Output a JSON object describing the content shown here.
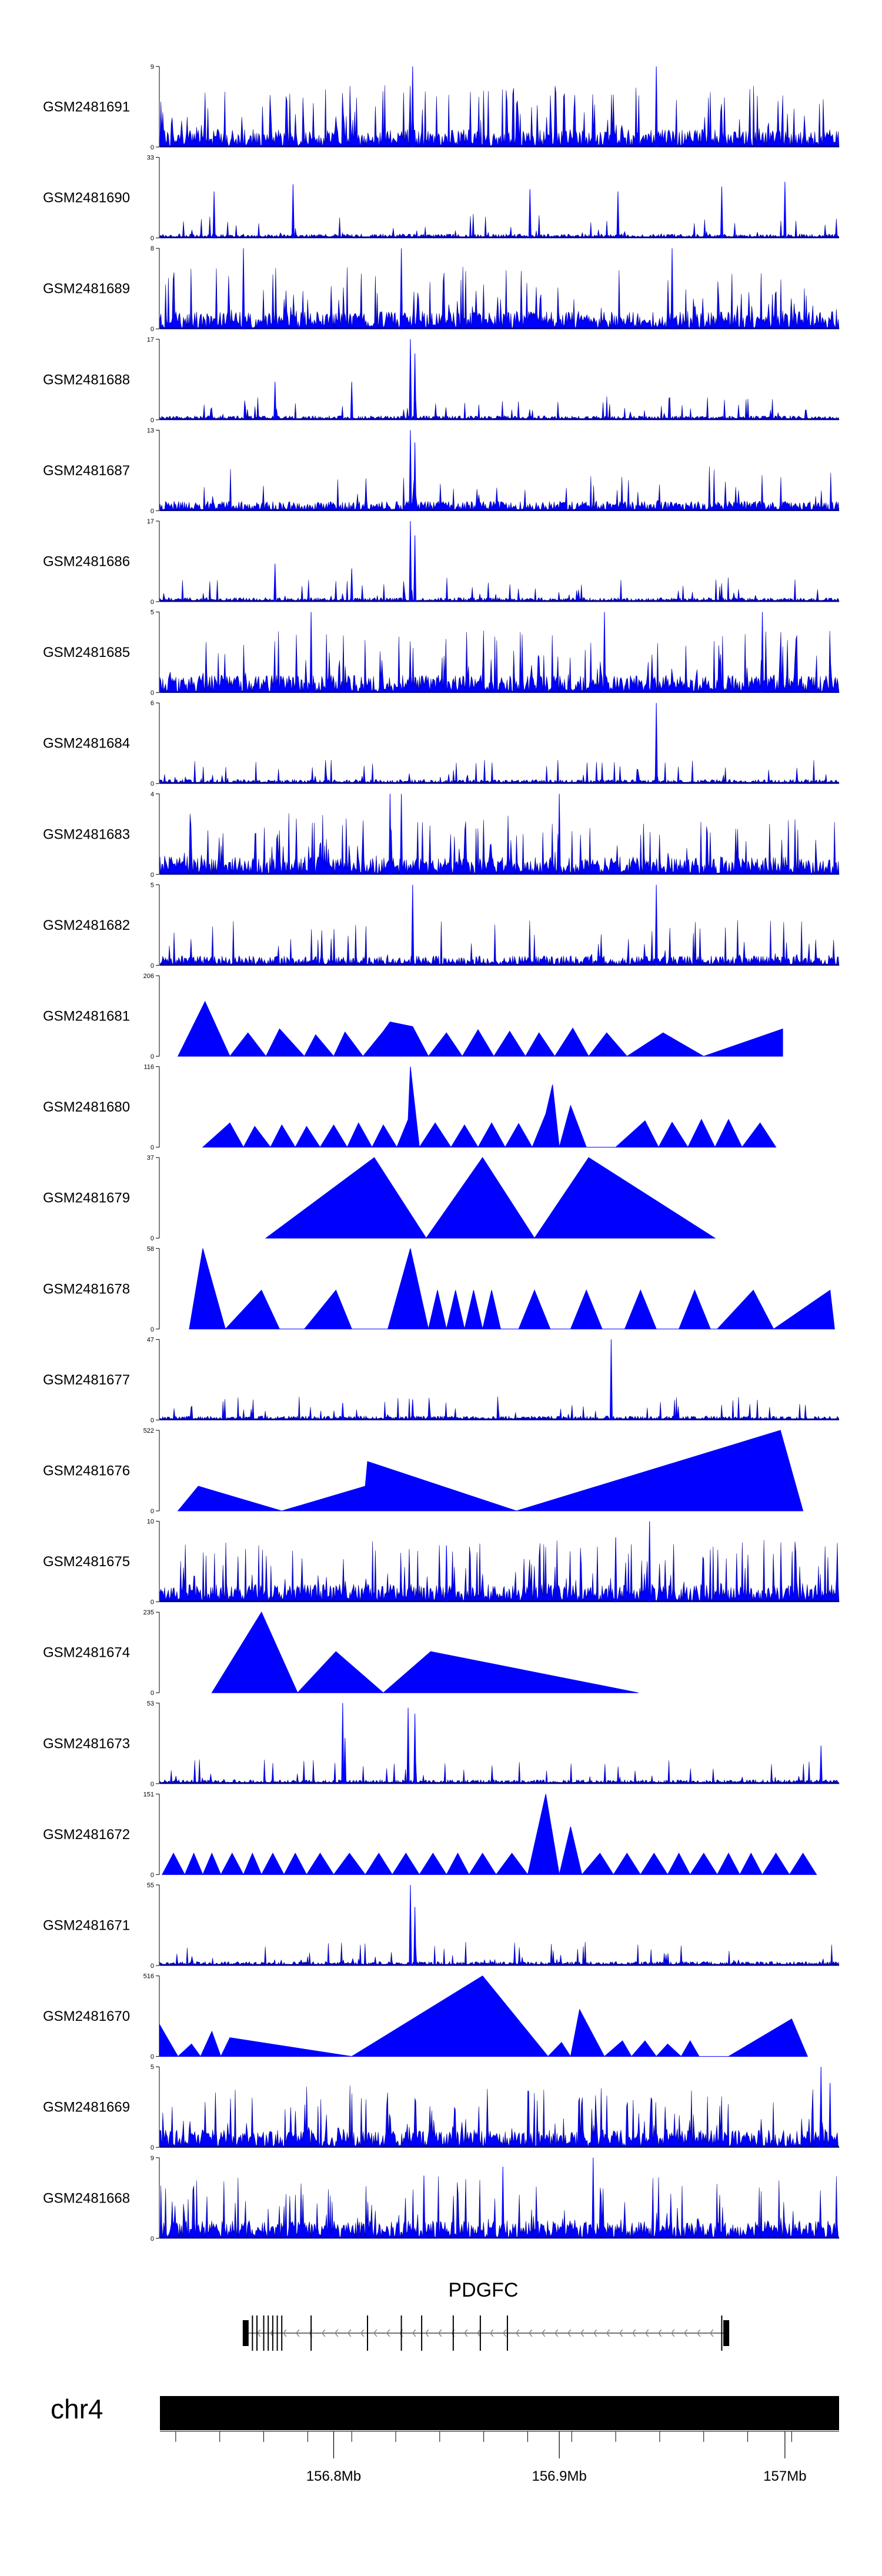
{
  "chart_data": {
    "type": "area",
    "title": "",
    "chromosome": "chr4",
    "gene": "PDGFC",
    "region_mb": [
      156.723,
      157.024
    ],
    "x_ticks": [
      156.8,
      156.9,
      157.0
    ],
    "x_tick_labels": [
      "156.8Mb",
      "156.9Mb",
      "157Mb"
    ],
    "color": "#0000FF",
    "tracks": [
      {
        "name": "GSM2481691",
        "ymax": 9,
        "ymin": 0,
        "style": "dense",
        "peaks": [
          [
            156.835,
            9
          ],
          [
            156.943,
            9
          ]
        ]
      },
      {
        "name": "GSM2481690",
        "ymax": 33,
        "ymin": 0,
        "style": "sparse",
        "peaks": [
          [
            156.747,
            19
          ],
          [
            156.782,
            22
          ],
          [
            156.887,
            20
          ],
          [
            156.926,
            19
          ],
          [
            156.972,
            21
          ],
          [
            157.0,
            23
          ]
        ]
      },
      {
        "name": "GSM2481689",
        "ymax": 8,
        "ymin": 0,
        "style": "dense",
        "peaks": [
          [
            156.76,
            8
          ],
          [
            156.83,
            8
          ],
          [
            156.95,
            8
          ]
        ]
      },
      {
        "name": "GSM2481688",
        "ymax": 17,
        "ymin": 0,
        "style": "low",
        "peaks": [
          [
            156.774,
            8
          ],
          [
            156.808,
            8
          ],
          [
            156.834,
            17
          ],
          [
            156.836,
            14
          ]
        ]
      },
      {
        "name": "GSM2481687",
        "ymax": 13,
        "ymin": 0,
        "style": "mid",
        "peaks": [
          [
            156.834,
            13
          ],
          [
            156.836,
            11
          ]
        ]
      },
      {
        "name": "GSM2481686",
        "ymax": 17,
        "ymin": 0,
        "style": "low",
        "peaks": [
          [
            156.774,
            8
          ],
          [
            156.808,
            7
          ],
          [
            156.834,
            17
          ],
          [
            156.836,
            14
          ]
        ]
      },
      {
        "name": "GSM2481685",
        "ymax": 5,
        "ymin": 0,
        "style": "dense",
        "peaks": [
          [
            156.79,
            5
          ],
          [
            156.92,
            5
          ],
          [
            156.99,
            5
          ]
        ]
      },
      {
        "name": "GSM2481684",
        "ymax": 6,
        "ymin": 0,
        "style": "low",
        "peaks": [
          [
            156.943,
            6
          ]
        ]
      },
      {
        "name": "GSM2481683",
        "ymax": 4,
        "ymin": 0,
        "style": "dense",
        "peaks": [
          [
            156.825,
            4
          ],
          [
            156.83,
            4
          ],
          [
            156.9,
            4
          ]
        ]
      },
      {
        "name": "GSM2481682",
        "ymax": 5,
        "ymin": 0,
        "style": "mid",
        "peaks": [
          [
            156.835,
            5
          ],
          [
            156.943,
            5
          ]
        ]
      },
      {
        "name": "GSM2481681",
        "ymax": 206,
        "ymin": 0,
        "style": "triangles",
        "peaks": [
          [
            156.731,
            0
          ],
          [
            156.743,
            140
          ],
          [
            156.754,
            0
          ],
          [
            156.762,
            60
          ],
          [
            156.77,
            0
          ],
          [
            156.776,
            70
          ],
          [
            156.787,
            0
          ],
          [
            156.792,
            55
          ],
          [
            156.8,
            0
          ],
          [
            156.805,
            62
          ],
          [
            156.813,
            0
          ],
          [
            156.822,
            64
          ],
          [
            156.825,
            88
          ],
          [
            156.835,
            76
          ],
          [
            156.842,
            0
          ],
          [
            156.85,
            60
          ],
          [
            156.857,
            0
          ],
          [
            156.864,
            68
          ],
          [
            156.871,
            0
          ],
          [
            156.878,
            64
          ],
          [
            156.885,
            0
          ],
          [
            156.891,
            60
          ],
          [
            156.898,
            0
          ],
          [
            156.906,
            72
          ],
          [
            156.913,
            0
          ],
          [
            156.921,
            60
          ],
          [
            156.93,
            0
          ],
          [
            156.946,
            60
          ],
          [
            156.964,
            0
          ],
          [
            156.999,
            70
          ]
        ]
      },
      {
        "name": "GSM2481680",
        "ymax": 116,
        "ymin": 0,
        "style": "triangles",
        "peaks": [
          [
            156.742,
            0
          ],
          [
            156.754,
            35
          ],
          [
            156.76,
            0
          ],
          [
            156.765,
            30
          ],
          [
            156.772,
            0
          ],
          [
            156.777,
            32
          ],
          [
            156.783,
            0
          ],
          [
            156.788,
            30
          ],
          [
            156.794,
            0
          ],
          [
            156.8,
            32
          ],
          [
            156.806,
            0
          ],
          [
            156.811,
            35
          ],
          [
            156.817,
            0
          ],
          [
            156.822,
            32
          ],
          [
            156.828,
            0
          ],
          [
            156.833,
            40
          ],
          [
            156.834,
            116
          ],
          [
            156.838,
            0
          ],
          [
            156.845,
            35
          ],
          [
            156.852,
            0
          ],
          [
            156.858,
            32
          ],
          [
            156.864,
            0
          ],
          [
            156.87,
            35
          ],
          [
            156.876,
            0
          ],
          [
            156.882,
            34
          ],
          [
            156.888,
            0
          ],
          [
            156.894,
            48
          ],
          [
            156.897,
            90
          ],
          [
            156.9,
            0
          ],
          [
            156.905,
            60
          ],
          [
            156.912,
            0
          ],
          [
            156.925,
            0
          ],
          [
            156.938,
            38
          ],
          [
            156.944,
            0
          ],
          [
            156.95,
            36
          ],
          [
            156.957,
            0
          ],
          [
            156.963,
            40
          ],
          [
            156.969,
            0
          ],
          [
            156.975,
            40
          ],
          [
            156.981,
            0
          ],
          [
            156.989,
            35
          ],
          [
            156.996,
            0
          ]
        ]
      },
      {
        "name": "GSM2481679",
        "ymax": 37,
        "ymin": 0,
        "style": "triangles",
        "peaks": [
          [
            156.77,
            0
          ],
          [
            156.818,
            37
          ],
          [
            156.841,
            0
          ],
          [
            156.866,
            37
          ],
          [
            156.889,
            0
          ],
          [
            156.913,
            37
          ],
          [
            156.969,
            0
          ]
        ]
      },
      {
        "name": "GSM2481678",
        "ymax": 58,
        "ymin": 0,
        "style": "triangles",
        "peaks": [
          [
            156.736,
            0
          ],
          [
            156.742,
            58
          ],
          [
            156.752,
            0
          ],
          [
            156.768,
            28
          ],
          [
            156.776,
            0
          ],
          [
            156.787,
            0
          ],
          [
            156.801,
            28
          ],
          [
            156.808,
            0
          ],
          [
            156.824,
            0
          ],
          [
            156.834,
            58
          ],
          [
            156.842,
            0
          ],
          [
            156.846,
            28
          ],
          [
            156.85,
            0
          ],
          [
            156.854,
            28
          ],
          [
            156.858,
            0
          ],
          [
            156.862,
            28
          ],
          [
            156.866,
            0
          ],
          [
            156.87,
            28
          ],
          [
            156.874,
            0
          ],
          [
            156.882,
            0
          ],
          [
            156.889,
            28
          ],
          [
            156.896,
            0
          ],
          [
            156.905,
            0
          ],
          [
            156.912,
            28
          ],
          [
            156.919,
            0
          ],
          [
            156.929,
            0
          ],
          [
            156.936,
            28
          ],
          [
            156.943,
            0
          ],
          [
            156.953,
            0
          ],
          [
            156.96,
            28
          ],
          [
            156.967,
            0
          ],
          [
            156.97,
            0
          ],
          [
            156.986,
            28
          ],
          [
            156.995,
            0
          ],
          [
            157.02,
            28
          ],
          [
            157.022,
            0
          ]
        ]
      },
      {
        "name": "GSM2481677",
        "ymax": 47,
        "ymin": 0,
        "style": "low",
        "peaks": [
          [
            156.804,
            10
          ],
          [
            156.835,
            12
          ],
          [
            156.923,
            47
          ]
        ]
      },
      {
        "name": "GSM2481676",
        "ymax": 522,
        "ymin": 0,
        "style": "triangles",
        "peaks": [
          [
            156.731,
            0
          ],
          [
            156.74,
            160
          ],
          [
            156.777,
            0
          ],
          [
            156.814,
            160
          ],
          [
            156.815,
            320
          ],
          [
            156.881,
            0
          ],
          [
            156.998,
            522
          ],
          [
            157.008,
            0
          ]
        ]
      },
      {
        "name": "GSM2481675",
        "ymax": 10,
        "ymin": 0,
        "style": "dense",
        "peaks": [
          [
            156.85,
            7
          ],
          [
            156.94,
            10
          ],
          [
            156.925,
            8
          ]
        ]
      },
      {
        "name": "GSM2481674",
        "ymax": 235,
        "ymin": 0,
        "style": "triangles",
        "peaks": [
          [
            156.746,
            0
          ],
          [
            156.768,
            235
          ],
          [
            156.784,
            0
          ],
          [
            156.801,
            120
          ],
          [
            156.822,
            0
          ],
          [
            156.843,
            120
          ],
          [
            156.935,
            0
          ]
        ]
      },
      {
        "name": "GSM2481673",
        "ymax": 53,
        "ymin": 0,
        "style": "low",
        "peaks": [
          [
            156.804,
            53
          ],
          [
            156.805,
            30
          ],
          [
            156.833,
            50
          ],
          [
            156.836,
            46
          ],
          [
            157.016,
            25
          ]
        ]
      },
      {
        "name": "GSM2481672",
        "ymax": 151,
        "ymin": 0,
        "style": "triangles",
        "peaks": [
          [
            156.724,
            0
          ],
          [
            156.729,
            40
          ],
          [
            156.734,
            0
          ],
          [
            156.738,
            40
          ],
          [
            156.742,
            0
          ],
          [
            156.746,
            40
          ],
          [
            156.75,
            0
          ],
          [
            156.755,
            40
          ],
          [
            156.76,
            0
          ],
          [
            156.764,
            40
          ],
          [
            156.768,
            0
          ],
          [
            156.773,
            40
          ],
          [
            156.778,
            0
          ],
          [
            156.783,
            40
          ],
          [
            156.788,
            0
          ],
          [
            156.794,
            40
          ],
          [
            156.8,
            0
          ],
          [
            156.807,
            40
          ],
          [
            156.814,
            0
          ],
          [
            156.82,
            40
          ],
          [
            156.826,
            0
          ],
          [
            156.832,
            40
          ],
          [
            156.838,
            0
          ],
          [
            156.844,
            40
          ],
          [
            156.85,
            0
          ],
          [
            156.855,
            40
          ],
          [
            156.86,
            0
          ],
          [
            156.866,
            40
          ],
          [
            156.872,
            0
          ],
          [
            156.879,
            40
          ],
          [
            156.886,
            0
          ],
          [
            156.894,
            151
          ],
          [
            156.9,
            0
          ],
          [
            156.905,
            90
          ],
          [
            156.91,
            0
          ],
          [
            156.918,
            40
          ],
          [
            156.924,
            0
          ],
          [
            156.93,
            40
          ],
          [
            156.936,
            0
          ],
          [
            156.942,
            40
          ],
          [
            156.948,
            0
          ],
          [
            156.953,
            40
          ],
          [
            156.958,
            0
          ],
          [
            156.964,
            40
          ],
          [
            156.97,
            0
          ],
          [
            156.975,
            40
          ],
          [
            156.98,
            0
          ],
          [
            156.985,
            40
          ],
          [
            156.99,
            0
          ],
          [
            156.996,
            40
          ],
          [
            157.002,
            0
          ],
          [
            157.008,
            40
          ],
          [
            157.014,
            0
          ]
        ]
      },
      {
        "name": "GSM2481671",
        "ymax": 55,
        "ymin": 0,
        "style": "low",
        "peaks": [
          [
            156.834,
            55
          ],
          [
            156.836,
            40
          ]
        ]
      },
      {
        "name": "GSM2481670",
        "ymax": 516,
        "ymin": 0,
        "style": "triangles",
        "peaks": [
          [
            156.723,
            200
          ],
          [
            156.731,
            0
          ],
          [
            156.737,
            80
          ],
          [
            156.741,
            0
          ],
          [
            156.746,
            160
          ],
          [
            156.75,
            0
          ],
          [
            156.754,
            120
          ],
          [
            156.808,
            0
          ],
          [
            156.866,
            516
          ],
          [
            156.895,
            0
          ],
          [
            156.901,
            90
          ],
          [
            156.905,
            0
          ],
          [
            156.909,
            300
          ],
          [
            156.92,
            0
          ],
          [
            156.928,
            100
          ],
          [
            156.932,
            0
          ],
          [
            156.938,
            100
          ],
          [
            156.943,
            0
          ],
          [
            156.948,
            80
          ],
          [
            156.954,
            0
          ],
          [
            156.958,
            100
          ],
          [
            156.962,
            0
          ],
          [
            156.975,
            0
          ],
          [
            157.003,
            240
          ],
          [
            157.01,
            0
          ]
        ]
      },
      {
        "name": "GSM2481669",
        "ymax": 5,
        "ymin": 0,
        "style": "dense",
        "peaks": [
          [
            157.016,
            5
          ],
          [
            157.02,
            4
          ]
        ]
      },
      {
        "name": "GSM2481668",
        "ymax": 9,
        "ymin": 0,
        "style": "dense",
        "peaks": [
          [
            156.84,
            7
          ],
          [
            156.875,
            8
          ],
          [
            156.915,
            9
          ]
        ]
      }
    ],
    "gene_model": {
      "name": "PDGFC",
      "strand": "-",
      "start_mb": 156.761,
      "end_mb": 156.974,
      "exons_mb": [
        156.761,
        156.764,
        156.766,
        156.769,
        156.771,
        156.773,
        156.775,
        156.777,
        156.79,
        156.815,
        156.83,
        156.839,
        156.853,
        156.865,
        156.877,
        156.972,
        156.974
      ]
    }
  }
}
